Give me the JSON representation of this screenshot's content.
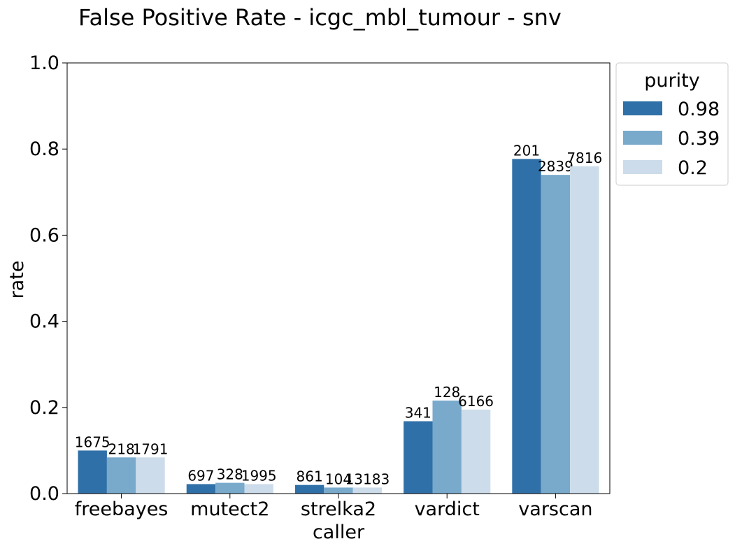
{
  "chart_data": {
    "type": "bar",
    "title": "False Positive Rate - icgc_mbl_tumour - snv",
    "xlabel": "caller",
    "ylabel": "rate",
    "ylim": [
      0,
      1.0
    ],
    "yticks": [
      "0.0",
      "0.2",
      "0.4",
      "0.6",
      "0.8",
      "1.0"
    ],
    "categories": [
      "freebayes",
      "mutect2",
      "strelka2",
      "vardict",
      "varscan"
    ],
    "legend": {
      "title": "purity",
      "position": "outside-top-right"
    },
    "grid": false,
    "series": [
      {
        "name": "0.98",
        "color": "#3070a8",
        "values": [
          0.1,
          0.022,
          0.02,
          0.168,
          0.777
        ],
        "labels": [
          "1675",
          "697",
          "861",
          "341",
          "201"
        ]
      },
      {
        "name": "0.39",
        "color": "#79aacc",
        "values": [
          0.084,
          0.025,
          0.014,
          0.216,
          0.74
        ],
        "labels": [
          "218",
          "328",
          "104",
          "128",
          "2839"
        ]
      },
      {
        "name": "0.2",
        "color": "#ccdcea",
        "values": [
          0.084,
          0.022,
          0.014,
          0.195,
          0.76
        ],
        "labels": [
          "1791",
          "1995",
          "13183",
          "6166",
          "7816"
        ]
      }
    ]
  }
}
